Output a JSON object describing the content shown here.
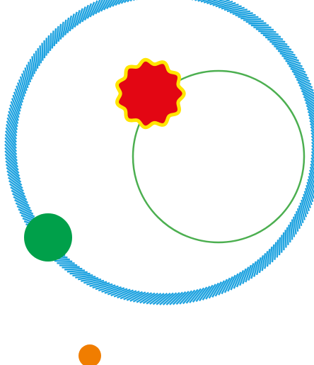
{
  "colors": {
    "background": "#ffffff",
    "outer_ring": "#1fa3e0",
    "inner_orbit": "#4caf50",
    "target_fill": "#e30613",
    "target_outline": "#ffe500",
    "player_ball": "#00a04a",
    "next_ball": "#f07d00"
  },
  "scene": {
    "outer_ring": {
      "style": "hatched",
      "icon": "hatched-ring"
    },
    "inner_orbit": {
      "style": "thin-line",
      "icon": "orbit-ring"
    },
    "target": {
      "shape": "wavy-star",
      "icon": "star-target-icon"
    },
    "player_ball": {
      "shape": "circle",
      "icon": "ball-icon"
    },
    "next_ball": {
      "shape": "circle",
      "icon": "ball-icon"
    }
  }
}
